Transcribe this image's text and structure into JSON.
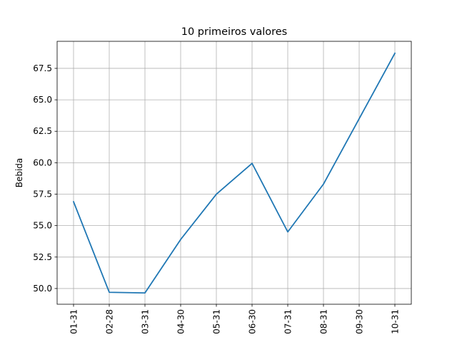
{
  "chart_data": {
    "type": "line",
    "title": "10 primeiros valores",
    "xlabel": "",
    "ylabel": "Bebida",
    "categories": [
      "01-31",
      "02-28",
      "03-31",
      "04-30",
      "05-31",
      "06-30",
      "07-31",
      "08-31",
      "09-30",
      "10-31"
    ],
    "series": [
      {
        "values": [
          56.9,
          49.7,
          49.65,
          53.9,
          57.5,
          59.95,
          54.5,
          58.3,
          63.5,
          68.7
        ],
        "color": "#1f77b4"
      }
    ],
    "ylim": [
      48.75,
      69.65
    ],
    "yticks": [
      50.0,
      52.5,
      55.0,
      57.5,
      60.0,
      62.5,
      65.0,
      67.5
    ],
    "ytick_labels": [
      "50.0",
      "52.5",
      "55.0",
      "57.5",
      "60.0",
      "62.5",
      "65.0",
      "67.5"
    ],
    "grid": true
  }
}
